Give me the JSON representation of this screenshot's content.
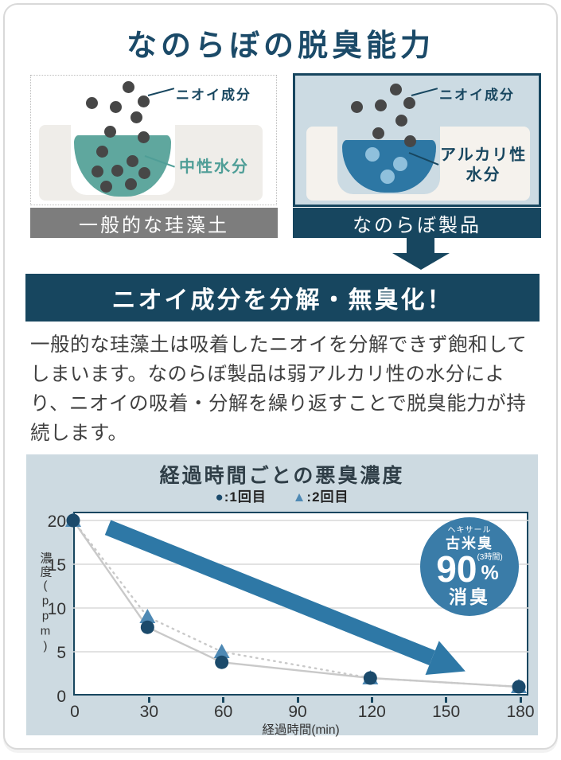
{
  "page": {
    "title": "なのらぼの脱臭能力"
  },
  "comparison": {
    "left": {
      "odor_label": "ニオイ成分",
      "water_label": "中性水分",
      "caption": "一般的な珪藻土"
    },
    "right": {
      "odor_label": "ニオイ成分",
      "water_label": "アルカリ性\n水分",
      "caption": "なのらぼ製品"
    }
  },
  "banner": {
    "text": "ニオイ成分を分解・無臭化！"
  },
  "description": "一般的な珪藻土は吸着したニオイを分解できず飽和してしまいます。なのらぼ製品は弱アルカリ性の水分により、ニオイの吸着・分解を繰り返すことで脱臭能力が持続します。",
  "chart_data": {
    "type": "line",
    "title": "経過時間ごとの悪臭濃度",
    "xlabel": "経過時間(min)",
    "ylabel": "濃度(ppm)",
    "x_ticks": [
      0,
      30,
      60,
      90,
      120,
      150,
      180
    ],
    "y_ticks": [
      0,
      5,
      10,
      15,
      20
    ],
    "xlim": [
      0,
      186
    ],
    "ylim": [
      0,
      21
    ],
    "grid": true,
    "legend_position": "top-center",
    "legend": [
      {
        "glyph": "●",
        "label": ":1回目",
        "color": "#1b4a6b"
      },
      {
        "glyph": "▲",
        "label": ":2回目",
        "color": "#4e89b4"
      }
    ],
    "series": [
      {
        "name": "2回目",
        "marker": "triangle",
        "color": "#4e89b4",
        "line_style": "dotted",
        "line_color": "#c9c9c9",
        "points": [
          [
            0,
            20
          ],
          [
            30,
            9
          ],
          [
            60,
            5
          ],
          [
            120,
            2
          ],
          [
            180,
            1
          ]
        ]
      },
      {
        "name": "1回目",
        "marker": "circle",
        "color": "#1b4a6b",
        "line_style": "solid",
        "line_color": "#c9c9c9",
        "points": [
          [
            0,
            20
          ],
          [
            30,
            7.8
          ],
          [
            60,
            3.8
          ],
          [
            120,
            2
          ],
          [
            180,
            1
          ]
        ]
      }
    ],
    "trend_arrow": {
      "from": [
        14,
        19.2
      ],
      "to": [
        145,
        4.3
      ],
      "color": "#2e78a6"
    },
    "badge": {
      "brand": "ヘキサール",
      "odor": "古米臭",
      "value": "90",
      "unit": "%",
      "duration": "(3時間)",
      "action": "消臭",
      "color": "#3a7ca8"
    }
  },
  "colors": {
    "navy": "#17465f",
    "teal": "#5fa79e",
    "teal_text": "#4f9e97",
    "blue": "#2d77a4",
    "panel_bg": "#cddae1",
    "diagram_bg": "#ccdbe3",
    "caption_gray": "#7d7d7d",
    "particle": "#474747"
  }
}
